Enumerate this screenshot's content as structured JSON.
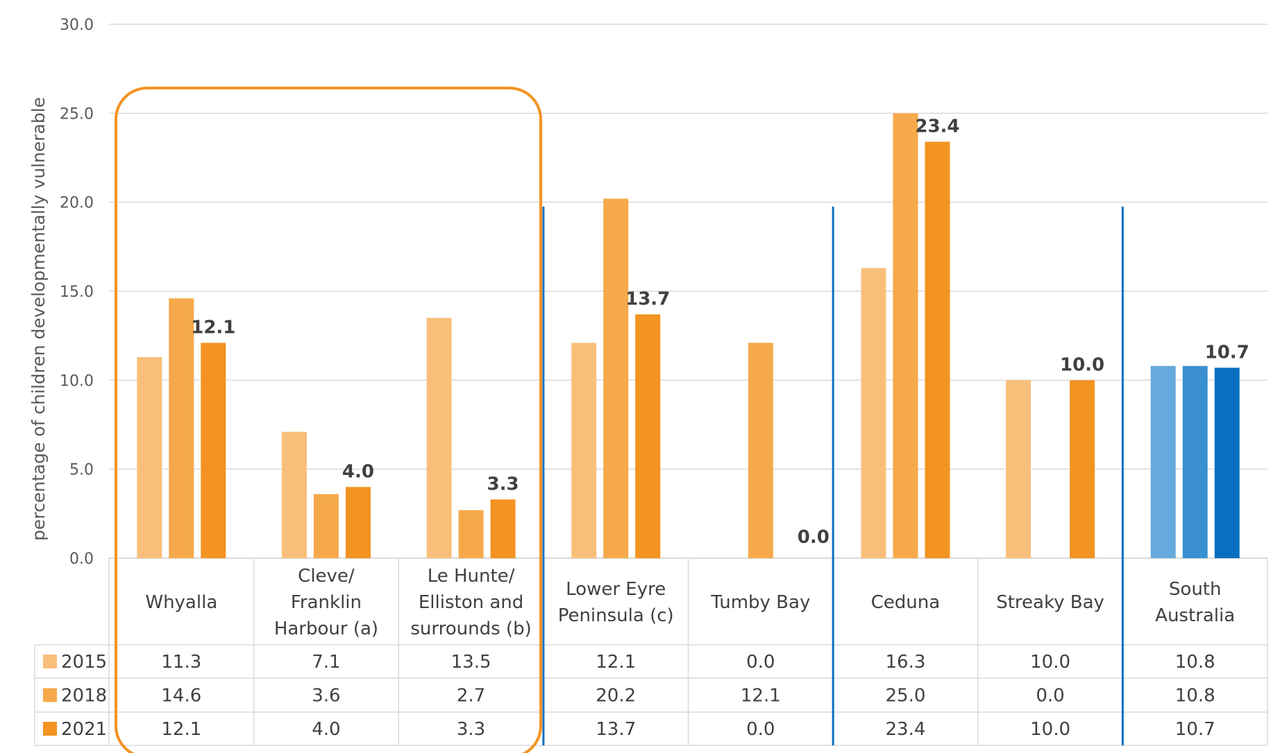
{
  "chart_data": {
    "type": "bar",
    "title": "",
    "xlabel": "",
    "ylabel": "percentage of children developmentally vulnerable",
    "ylim": [
      0,
      30
    ],
    "yticks": [
      "0.0",
      "5.0",
      "10.0",
      "15.0",
      "20.0",
      "25.0",
      "30.0"
    ],
    "grid": true,
    "legend": "data-table",
    "categories": [
      [
        "Whyalla"
      ],
      [
        "Cleve/",
        "Franklin",
        "Harbour (a)"
      ],
      [
        "Le Hunte/",
        "Elliston and",
        "surrounds (b)"
      ],
      [
        "Lower Eyre",
        "Peninsula (c)"
      ],
      [
        "Tumby Bay"
      ],
      [
        "Ceduna"
      ],
      [
        "Streaky Bay"
      ],
      [
        "South",
        "Australia"
      ]
    ],
    "series": [
      {
        "name": "2015",
        "values": [
          11.3,
          7.1,
          13.5,
          12.1,
          0.0,
          16.3,
          10.0,
          10.8
        ],
        "display": [
          "11.3",
          "7.1",
          "13.5",
          "12.1",
          "0.0",
          "16.3",
          "10.0",
          "10.8"
        ]
      },
      {
        "name": "2018",
        "values": [
          14.6,
          3.6,
          2.7,
          20.2,
          12.1,
          25.0,
          0.0,
          10.8
        ],
        "display": [
          "14.6",
          "3.6",
          "2.7",
          "20.2",
          "12.1",
          "25.0",
          "0.0",
          "10.8"
        ]
      },
      {
        "name": "2021",
        "values": [
          12.1,
          4.0,
          3.3,
          13.7,
          0.0,
          23.4,
          10.0,
          10.7
        ],
        "display": [
          "12.1",
          "4.0",
          "3.3",
          "13.7",
          "0.0",
          "23.4",
          "10.0",
          "10.7"
        ]
      }
    ],
    "data_labels_series": "2021",
    "colors": {
      "orange": [
        "#F9BF7A",
        "#F5A94A",
        "#F39321"
      ],
      "blue": [
        "#66A9DC",
        "#3A8FD0",
        "#0A6FC2"
      ],
      "highlight_box": "#F39321",
      "divider": "#0A6FC2",
      "grid": "#D9D9D9"
    }
  }
}
